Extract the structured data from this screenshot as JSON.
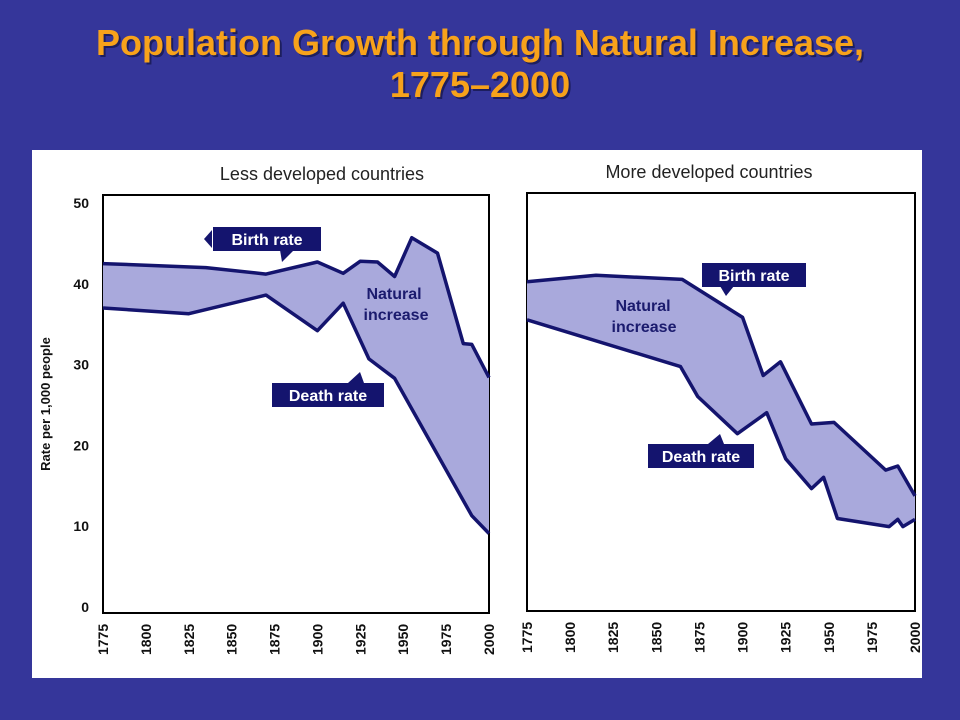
{
  "slide": {
    "title_line1": "Population Growth through Natural Increase,",
    "title_line2": "1775–2000"
  },
  "colors": {
    "background": "#35369a",
    "title": "#f7a21b",
    "line": "#14146e",
    "fill": "#a9a9dc",
    "callout": "#14146e"
  },
  "chart_data": [
    {
      "type": "area",
      "title": "Less developed countries",
      "ylabel": "Rate per 1,000 people",
      "xlabel": "",
      "xlim": [
        1775,
        2000
      ],
      "ylim": [
        0,
        50
      ],
      "x_ticks": [
        "1775",
        "1800",
        "1825",
        "1850",
        "1875",
        "1900",
        "1925",
        "1950",
        "1975",
        "2000"
      ],
      "y_ticks": [
        "0",
        "10",
        "20",
        "30",
        "40",
        "50"
      ],
      "series": [
        {
          "name": "Birth rate",
          "x": [
            1775,
            1800,
            1835,
            1870,
            1900,
            1915,
            1925,
            1935,
            1945,
            1955,
            1970,
            1985,
            1990,
            2000
          ],
          "y": [
            42.5,
            42.3,
            42,
            41.2,
            42.7,
            41.3,
            42.8,
            42.7,
            40.9,
            45.7,
            43.8,
            32.6,
            32.5,
            28.4
          ]
        },
        {
          "name": "Death rate",
          "x": [
            1775,
            1825,
            1870,
            1900,
            1915,
            1930,
            1945,
            1990,
            2000
          ],
          "y": [
            37,
            36.3,
            38.6,
            34.2,
            37.6,
            30.7,
            28.3,
            11.3,
            9.1
          ]
        }
      ],
      "annotations": [
        {
          "text": "Birth rate",
          "kind": "callout"
        },
        {
          "text": "Death rate",
          "kind": "callout"
        },
        {
          "text": "Natural increase",
          "lines": [
            "Natural",
            "increase"
          ],
          "kind": "label"
        }
      ]
    },
    {
      "type": "area",
      "title": "More developed countries",
      "ylabel": "",
      "xlabel": "",
      "xlim": [
        1775,
        2000
      ],
      "ylim": [
        0,
        50
      ],
      "x_ticks": [
        "1775",
        "1800",
        "1825",
        "1850",
        "1875",
        "1900",
        "1925",
        "1950",
        "1975",
        "2000"
      ],
      "y_ticks": [],
      "series": [
        {
          "name": "Birth rate",
          "x": [
            1775,
            1815,
            1865,
            1900,
            1912,
            1922,
            1940,
            1953,
            1983,
            1990,
            2000
          ],
          "y": [
            40,
            40.8,
            40.3,
            35.6,
            28.4,
            30.1,
            22.4,
            22.6,
            16.7,
            17.2,
            13.5
          ]
        },
        {
          "name": "Death rate",
          "x": [
            1775,
            1864,
            1874,
            1897,
            1914,
            1925,
            1940,
            1947,
            1955,
            1985,
            1990,
            1993,
            2000
          ],
          "y": [
            35.3,
            29.5,
            25.8,
            21.2,
            23.8,
            18.1,
            14.4,
            15.8,
            10.7,
            9.7,
            10.6,
            9.7,
            10.6
          ]
        }
      ],
      "annotations": [
        {
          "text": "Birth rate",
          "kind": "callout"
        },
        {
          "text": "Death rate",
          "kind": "callout"
        },
        {
          "text": "Natural increase",
          "lines": [
            "Natural",
            "increase"
          ],
          "kind": "label"
        }
      ]
    }
  ]
}
